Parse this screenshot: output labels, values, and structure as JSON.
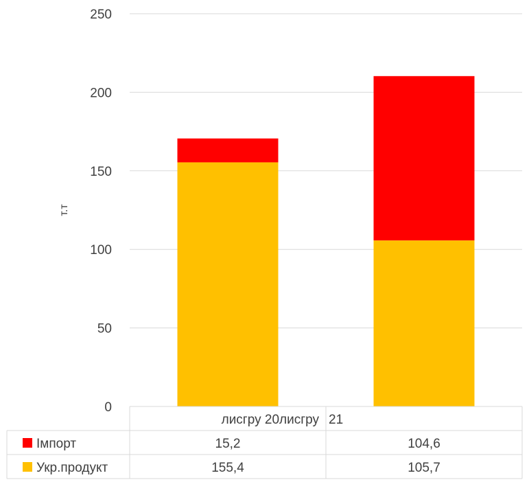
{
  "chart_data": {
    "type": "bar",
    "stacked": true,
    "categories": [
      "лисгру 20лисгру",
      "21"
    ],
    "series": [
      {
        "name": "Укр.продукт",
        "values": [
          155.4,
          105.7
        ],
        "color": "#FFC000",
        "value_labels": [
          "155,4",
          "105,7"
        ]
      },
      {
        "name": "Імпорт",
        "values": [
          15.2,
          104.6
        ],
        "color": "#FF0000",
        "value_labels": [
          "15,2",
          "104,6"
        ]
      }
    ],
    "ylabel": "т.т",
    "ylim": [
      0,
      250
    ],
    "yticks": [
      0,
      50,
      100,
      150,
      200,
      250
    ],
    "grid": true,
    "legend": "data-table"
  }
}
